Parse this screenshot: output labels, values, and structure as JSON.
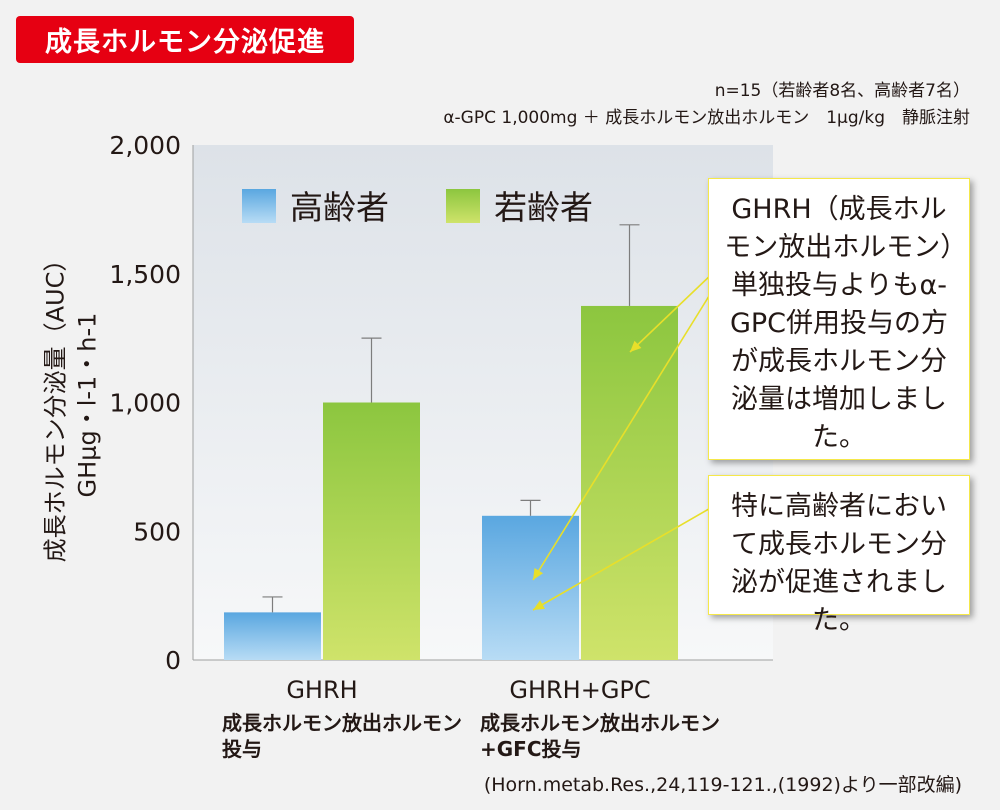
{
  "badge": "成長ホルモン分泌促進",
  "notes": {
    "line1": "n=15（若齢者8名、高齢者7名）",
    "line2": "α-GPC 1,000mg ＋ 成長ホルモン放出ホルモン　1μg/kg　静脈注射"
  },
  "y_title": {
    "line1": "成長ホルモン分泌量（AUC）",
    "line2": "GHμg・l-1・h-1"
  },
  "callouts": {
    "box1": "GHRH（成長ホルモン放出ホルモン）単独投与よりもα-GPC併用投与の方が成長ホルモン分泌量は増加しました。",
    "box2": "特に高齢者において成長ホルモン分泌が促進されました。"
  },
  "x_categories": [
    {
      "main": "GHRH",
      "sub1": "成長ホルモン放出ホルモン",
      "sub2": "投与"
    },
    {
      "main": "GHRH+GPC",
      "sub1": "成長ホルモン放出ホルモン",
      "sub2": "+GFC投与"
    }
  ],
  "source": "(Horn.metab.Res.,24,119-121.,(1992)より一部改編)",
  "colors": {
    "badge": "#e60012",
    "elderly_top": "#5aa7e0",
    "elderly_bottom": "#b8dcf5",
    "young_top": "#8cc63f",
    "young_bottom": "#cfe36a",
    "plot_top": "#dde2e8",
    "plot_bottom": "#f7f8f9",
    "callout_border": "#f5e84a",
    "arrow": "#e8df2a"
  },
  "chart_data": {
    "type": "bar",
    "categories": [
      "GHRH",
      "GHRH+GPC"
    ],
    "series": [
      {
        "name": "高齢者",
        "values": [
          185,
          560
        ],
        "error": [
          245,
          620
        ]
      },
      {
        "name": "若齢者",
        "values": [
          1000,
          1375
        ],
        "error": [
          1250,
          1690
        ]
      }
    ],
    "ylim": [
      0,
      2000
    ],
    "yticks": [
      0,
      500,
      1000,
      1500,
      2000
    ],
    "ytick_labels": [
      "0",
      "500",
      "1,000",
      "1,500",
      "2,000"
    ],
    "legend_position": "top-left",
    "grid": false
  }
}
